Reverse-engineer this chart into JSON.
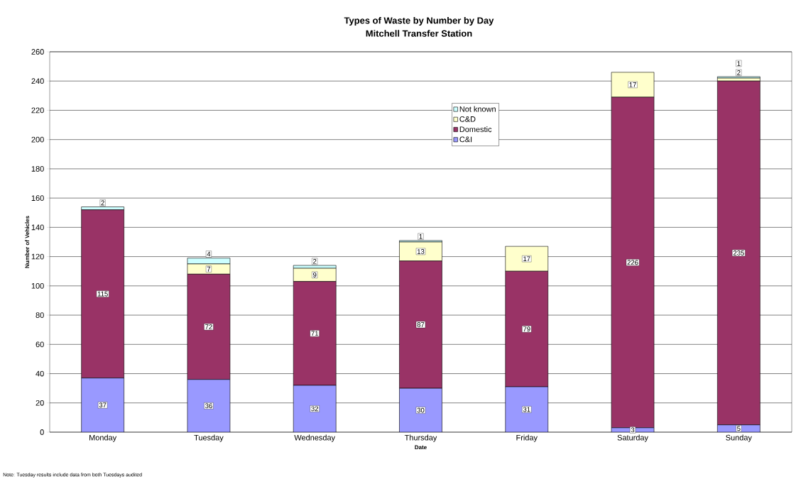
{
  "chart_data": {
    "type": "bar",
    "stacked": true,
    "title": "Types of Waste by Number by Day",
    "subtitle": "Mitchell Transfer Station",
    "xlabel": "Date",
    "ylabel": "Number of Vehicles",
    "categories": [
      "Monday",
      "Tuesday",
      "Wednesday",
      "Thursday",
      "Friday",
      "Saturday",
      "Sunday"
    ],
    "series": [
      {
        "name": "C&I",
        "color": "#9999ff",
        "values": [
          37,
          36,
          32,
          30,
          31,
          3,
          5
        ]
      },
      {
        "name": "Domestic",
        "color": "#993366",
        "values": [
          115,
          72,
          71,
          87,
          79,
          226,
          235
        ]
      },
      {
        "name": "C&D",
        "color": "#ffffcc",
        "values": [
          null,
          7,
          9,
          13,
          17,
          17,
          2
        ]
      },
      {
        "name": "Not known",
        "color": "#ccffff",
        "values": [
          2,
          4,
          2,
          1,
          null,
          null,
          1
        ]
      }
    ],
    "ylim": [
      0,
      260
    ],
    "yticks": [
      0,
      20,
      40,
      60,
      80,
      100,
      120,
      140,
      160,
      180,
      200,
      220,
      240,
      260
    ],
    "grid": "y",
    "legend": "top",
    "data_labels": true,
    "annotations": [
      "Note: Tuesday results include data from both Tuesdays audited"
    ]
  }
}
